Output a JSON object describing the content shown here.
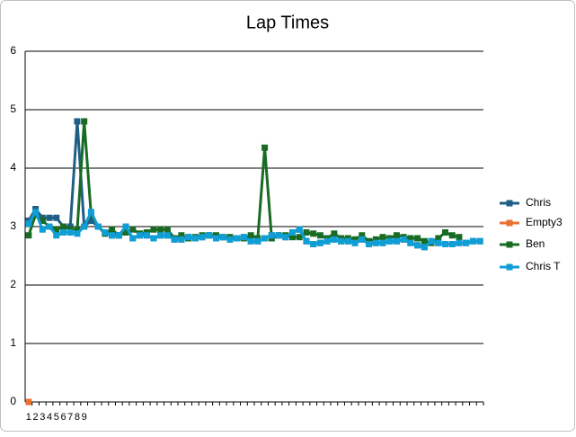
{
  "chart_data": {
    "type": "line",
    "title": "Lap Times",
    "categories": [
      "1",
      "2",
      "3",
      "4",
      "5",
      "6",
      "7",
      "8",
      "9",
      null,
      null,
      null,
      null,
      null,
      null,
      null,
      null,
      null,
      null,
      null,
      null,
      null,
      null,
      null,
      null,
      null,
      null,
      null,
      null,
      null,
      null,
      null,
      null,
      null,
      null,
      null,
      null,
      null,
      null,
      null,
      null,
      null,
      null,
      null,
      null,
      null,
      null,
      null,
      null,
      null,
      null,
      null,
      null,
      null,
      null,
      null,
      null,
      null,
      null,
      null,
      null,
      null,
      null,
      null,
      null,
      null
    ],
    "ylim": [
      0,
      6
    ],
    "yticks": [
      0,
      1,
      2,
      3,
      4,
      5,
      6
    ],
    "grid": true,
    "legend": "right",
    "series": [
      {
        "name": "Chris",
        "color": "#1f5f86",
        "values": [
          3.1,
          3.3,
          3.15,
          3.15,
          3.15,
          3.0,
          3.0,
          4.8,
          3.0,
          3.1,
          3.0,
          2.9,
          2.85,
          2.85,
          3.0,
          2.8,
          2.85,
          2.85,
          2.8,
          2.85,
          2.85,
          2.78,
          2.78,
          2.82,
          2.8,
          2.82,
          2.85,
          2.8,
          2.82,
          2.78,
          2.8,
          2.82,
          2.75,
          2.75,
          2.8,
          2.85,
          2.85,
          2.82,
          2.9,
          2.95,
          2.75,
          2.7,
          2.72,
          2.75,
          2.78,
          2.75,
          2.75,
          2.72,
          2.78,
          2.7,
          2.72,
          2.72,
          2.75,
          2.75,
          2.78,
          2.72,
          2.68,
          2.65,
          2.75,
          2.72,
          2.7,
          2.7,
          2.72,
          2.72,
          2.75,
          2.75
        ]
      },
      {
        "name": "Empty3",
        "color": "#e97132",
        "values": [
          0,
          null,
          null,
          null,
          null,
          null,
          null,
          null,
          null,
          null,
          null,
          null,
          null,
          null,
          null,
          null,
          null,
          null,
          null,
          null,
          null,
          null,
          null,
          null,
          null,
          null,
          null,
          null,
          null,
          null,
          null,
          null,
          null,
          null,
          null,
          null,
          null,
          null,
          null,
          null,
          null,
          null,
          null,
          null,
          null,
          null,
          null,
          null,
          null,
          null,
          null,
          null,
          null,
          null,
          null,
          null,
          null,
          null,
          null,
          null,
          null,
          null,
          null,
          null,
          null,
          null
        ]
      },
      {
        "name": "Ben",
        "color": "#196b24",
        "values": [
          2.85,
          3.2,
          3.1,
          3.0,
          2.95,
          3.0,
          2.95,
          2.95,
          4.8,
          3.2,
          3.0,
          2.88,
          2.95,
          2.85,
          2.9,
          2.95,
          2.88,
          2.9,
          2.95,
          2.95,
          2.95,
          2.8,
          2.85,
          2.8,
          2.82,
          2.85,
          2.85,
          2.85,
          2.82,
          2.82,
          2.8,
          2.8,
          2.85,
          2.8,
          4.35,
          2.8,
          2.85,
          2.85,
          2.82,
          2.82,
          2.9,
          2.88,
          2.85,
          2.8,
          2.88,
          2.8,
          2.8,
          2.78,
          2.85,
          2.75,
          2.78,
          2.82,
          2.8,
          2.85,
          2.82,
          2.8,
          2.8,
          2.75,
          2.72,
          2.8,
          2.9,
          2.85,
          2.82,
          null,
          null,
          null
        ]
      },
      {
        "name": "Chris T",
        "color": "#0f9ed5",
        "values": [
          3.05,
          3.25,
          2.95,
          3.0,
          2.85,
          2.9,
          2.9,
          2.88,
          3.0,
          3.25,
          3.0,
          2.9,
          2.85,
          2.85,
          3.0,
          2.8,
          2.85,
          2.85,
          2.8,
          2.85,
          2.85,
          2.78,
          2.78,
          2.82,
          2.8,
          2.82,
          2.85,
          2.8,
          2.82,
          2.78,
          2.8,
          2.82,
          2.75,
          2.75,
          2.8,
          2.85,
          2.85,
          2.82,
          2.9,
          2.95,
          2.75,
          2.7,
          2.72,
          2.75,
          2.78,
          2.75,
          2.75,
          2.72,
          2.78,
          2.7,
          2.72,
          2.72,
          2.75,
          2.75,
          2.78,
          2.72,
          2.68,
          2.65,
          2.75,
          2.72,
          2.7,
          2.7,
          2.72,
          2.72,
          2.75,
          2.75
        ]
      }
    ]
  }
}
